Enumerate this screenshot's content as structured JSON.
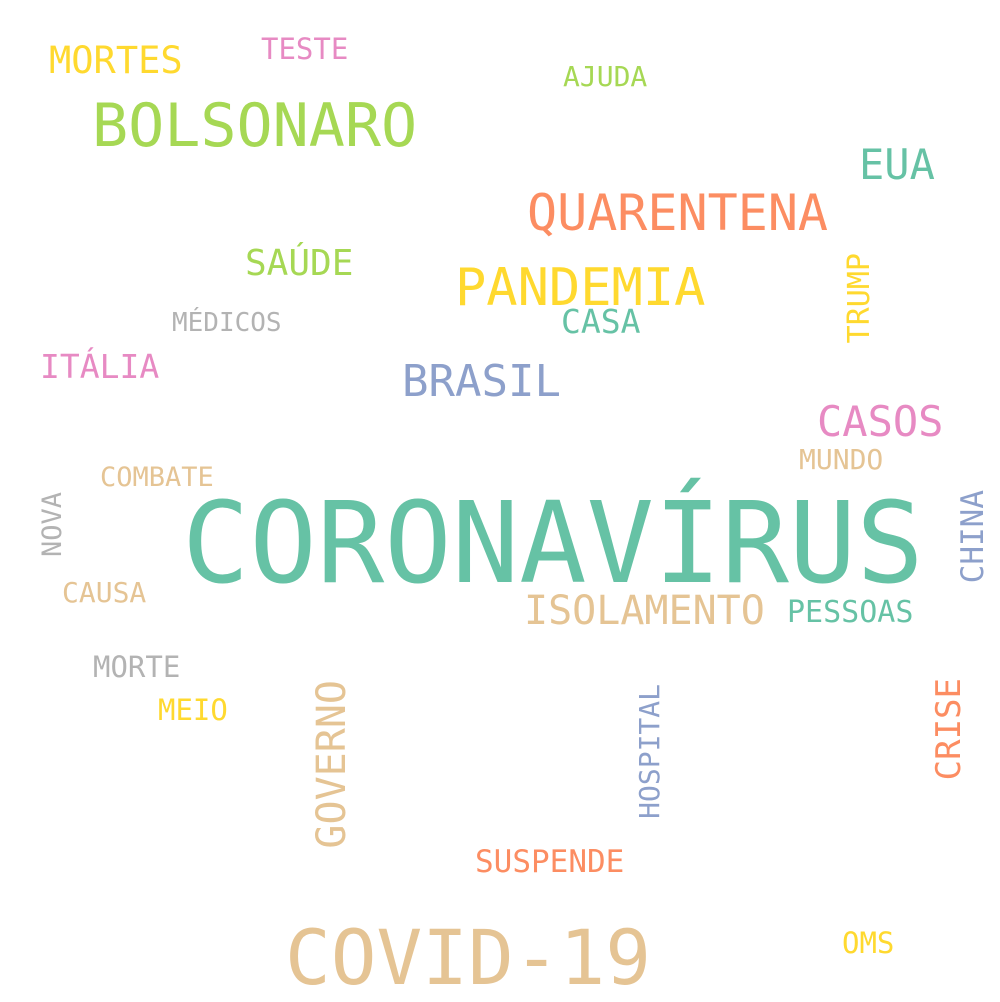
{
  "palette": {
    "teal": "#66c2a5",
    "orange": "#fc8d62",
    "blue": "#8da0cb",
    "pink": "#e78ac3",
    "green": "#a6d854",
    "yellow": "#ffd92f",
    "tan": "#e5c494",
    "gray": "#b3b3b3"
  },
  "words": {
    "coronavirus": "CORONAVÍRUS",
    "covid": "COVID-19",
    "bolsonaro": "BOLSONARO",
    "quarentena": "QUARENTENA",
    "pandemia": "PANDEMIA",
    "brasil": "BRASIL",
    "eua": "EUA",
    "casos": "CASOS",
    "isolamento": "ISOLAMENTO",
    "mortes": "MORTES",
    "saude": "SAÚDE",
    "italia": "ITÁLIA",
    "governo": "GOVERNO",
    "crise": "CRISE",
    "trump": "TRUMP",
    "china": "CHINA",
    "hospital": "HOSPITAL",
    "nova": "NOVA",
    "casa": "CASA",
    "pessoas": "PESSOAS",
    "suspende": "SUSPENDE",
    "teste": "TESTE",
    "ajuda": "AJUDA",
    "medicos": "MÉDICOS",
    "combate": "COMBATE",
    "mundo": "MUNDO",
    "causa": "CAUSA",
    "morte": "MORTE",
    "meio": "MEIO",
    "oms": "OMS"
  }
}
